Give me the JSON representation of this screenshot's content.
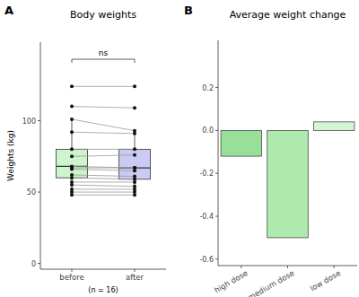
{
  "chart_data": [
    {
      "type": "box",
      "label": "A",
      "title": "Body weights",
      "y_label": "Weights (kg)",
      "x_label": "(n = 16)",
      "annotation": "ns",
      "ylim": [
        -4,
        155
      ],
      "yticks": [
        0,
        50,
        100
      ],
      "groups": [
        {
          "name": "before",
          "color": "#ccf5cc",
          "whisker_low": 48,
          "q1": 60,
          "median": 68,
          "q3": 80,
          "whisker_high": 101,
          "values": [
            124,
            110,
            101,
            92,
            80,
            75,
            68,
            67,
            66,
            62,
            60,
            57,
            55,
            52,
            50,
            48
          ]
        },
        {
          "name": "after",
          "color": "#cacaf3",
          "whisker_low": 48,
          "q1": 59,
          "median": 67,
          "q3": 80,
          "whisker_high": 93,
          "values": [
            124,
            109,
            93,
            91,
            80,
            76,
            67,
            67,
            65,
            61,
            59,
            57,
            54,
            52,
            50,
            48
          ]
        }
      ]
    },
    {
      "type": "bar",
      "label": "B",
      "title": "Average weight change",
      "categories": [
        "high dose",
        "medium dose",
        "low dose"
      ],
      "values": [
        -0.12,
        -0.5,
        0.04
      ],
      "colors": [
        "#99de99",
        "#aeeaae",
        "#d2f7d2"
      ],
      "ylim": [
        -0.63,
        0.42
      ],
      "yticks": [
        -0.6,
        -0.4,
        -0.2,
        {
          "value": 0,
          "label": "0.0"
        },
        0.2
      ]
    }
  ]
}
